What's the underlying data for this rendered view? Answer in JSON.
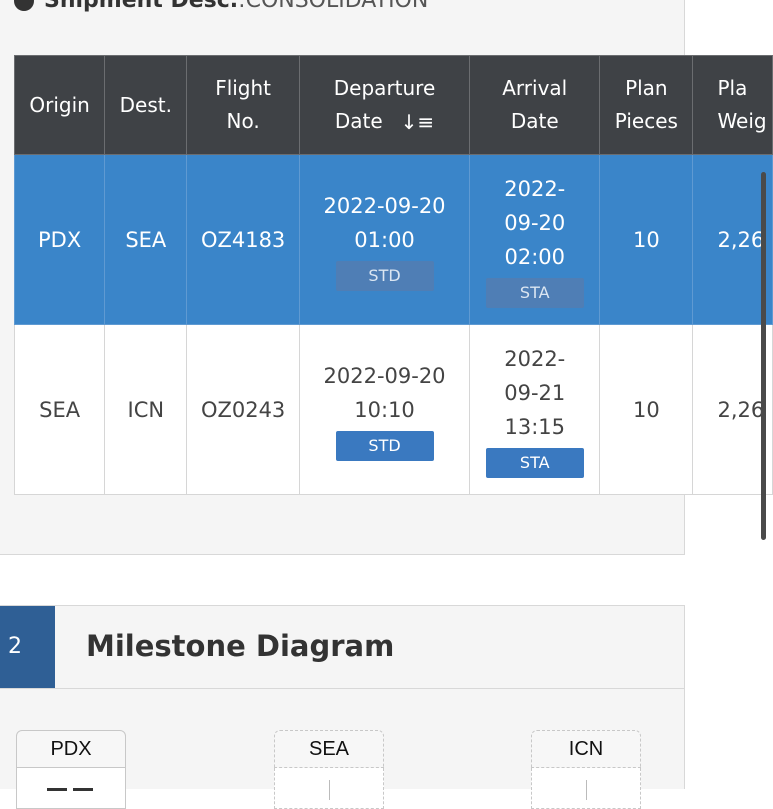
{
  "section1": {
    "title": "Shipment Desc.",
    "separator": " : ",
    "subtitle": "CONSOLIDATION"
  },
  "table": {
    "headers": {
      "origin": "Origin",
      "dest": "Dest.",
      "flight_l1": "Flight",
      "flight_l2": "No.",
      "dep_l1": "Departure",
      "dep_l2": "Date",
      "arr_l1": "Arrival",
      "arr_l2": "Date",
      "pieces_l1": "Plan",
      "pieces_l2": "Pieces",
      "weight_l1": "Pla",
      "weight_l2": "Weig"
    },
    "sort_icon": "↓≡",
    "rows": [
      {
        "origin": "PDX",
        "dest": "SEA",
        "flight": "OZ4183",
        "dep_date": "2022-09-20",
        "dep_time": "01:00",
        "dep_badge": "STD",
        "arr_l1": "2022-",
        "arr_l2": "09-20",
        "arr_l3": "02:00",
        "arr_badge": "STA",
        "pieces": "10",
        "weight": "2,26",
        "selected": true
      },
      {
        "origin": "SEA",
        "dest": "ICN",
        "flight": "OZ0243",
        "dep_date": "2022-09-20",
        "dep_time": "10:10",
        "dep_badge": "STD",
        "arr_l1": "2022-",
        "arr_l2": "09-21",
        "arr_l3": "13:15",
        "arr_badge": "STA",
        "pieces": "10",
        "weight": "2,26",
        "selected": false
      }
    ]
  },
  "milestone": {
    "number": "2",
    "title": "Milestone Diagram",
    "nodes": [
      "PDX",
      "SEA",
      "ICN"
    ]
  },
  "colors": {
    "header_bg": "#3f4246",
    "selected_row": "#3a85c9",
    "badge_blue": "#3a79c0",
    "section_number_bg": "#2f5f95"
  },
  "icons": {
    "sort": "sort-descending-icon",
    "section": "circle-icon"
  }
}
